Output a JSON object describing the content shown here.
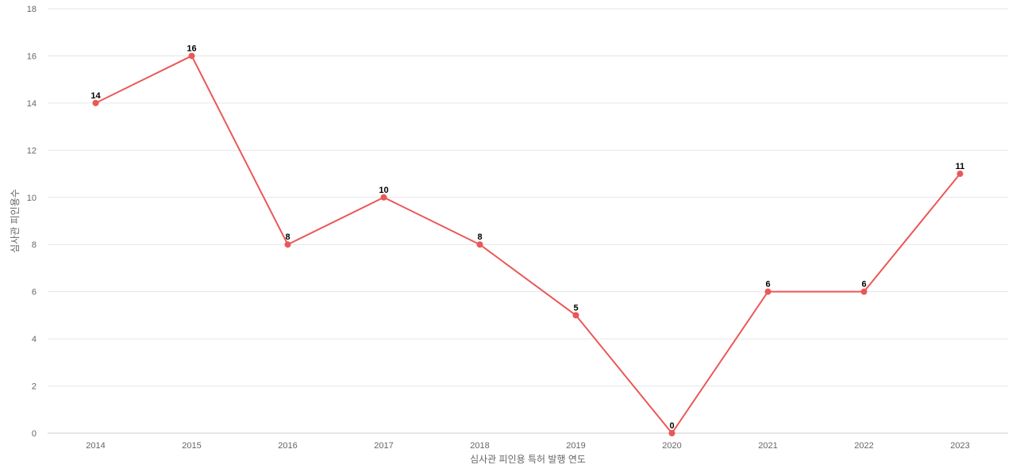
{
  "chart_data": {
    "type": "line",
    "title": "",
    "xlabel": "심사관 피인용 특허 발행 연도",
    "ylabel": "심사관 피인용수",
    "categories": [
      "2014",
      "2015",
      "2016",
      "2017",
      "2018",
      "2019",
      "2020",
      "2021",
      "2022",
      "2023"
    ],
    "series": [
      {
        "values": [
          14,
          16,
          8,
          10,
          8,
          5,
          0,
          6,
          6,
          11
        ],
        "color": "#eb5757"
      }
    ],
    "ylim": [
      0,
      18
    ],
    "yticks": [
      0,
      2,
      4,
      6,
      8,
      10,
      12,
      14,
      16,
      18
    ],
    "grid": true,
    "legend": "none",
    "show_data_labels": true
  }
}
